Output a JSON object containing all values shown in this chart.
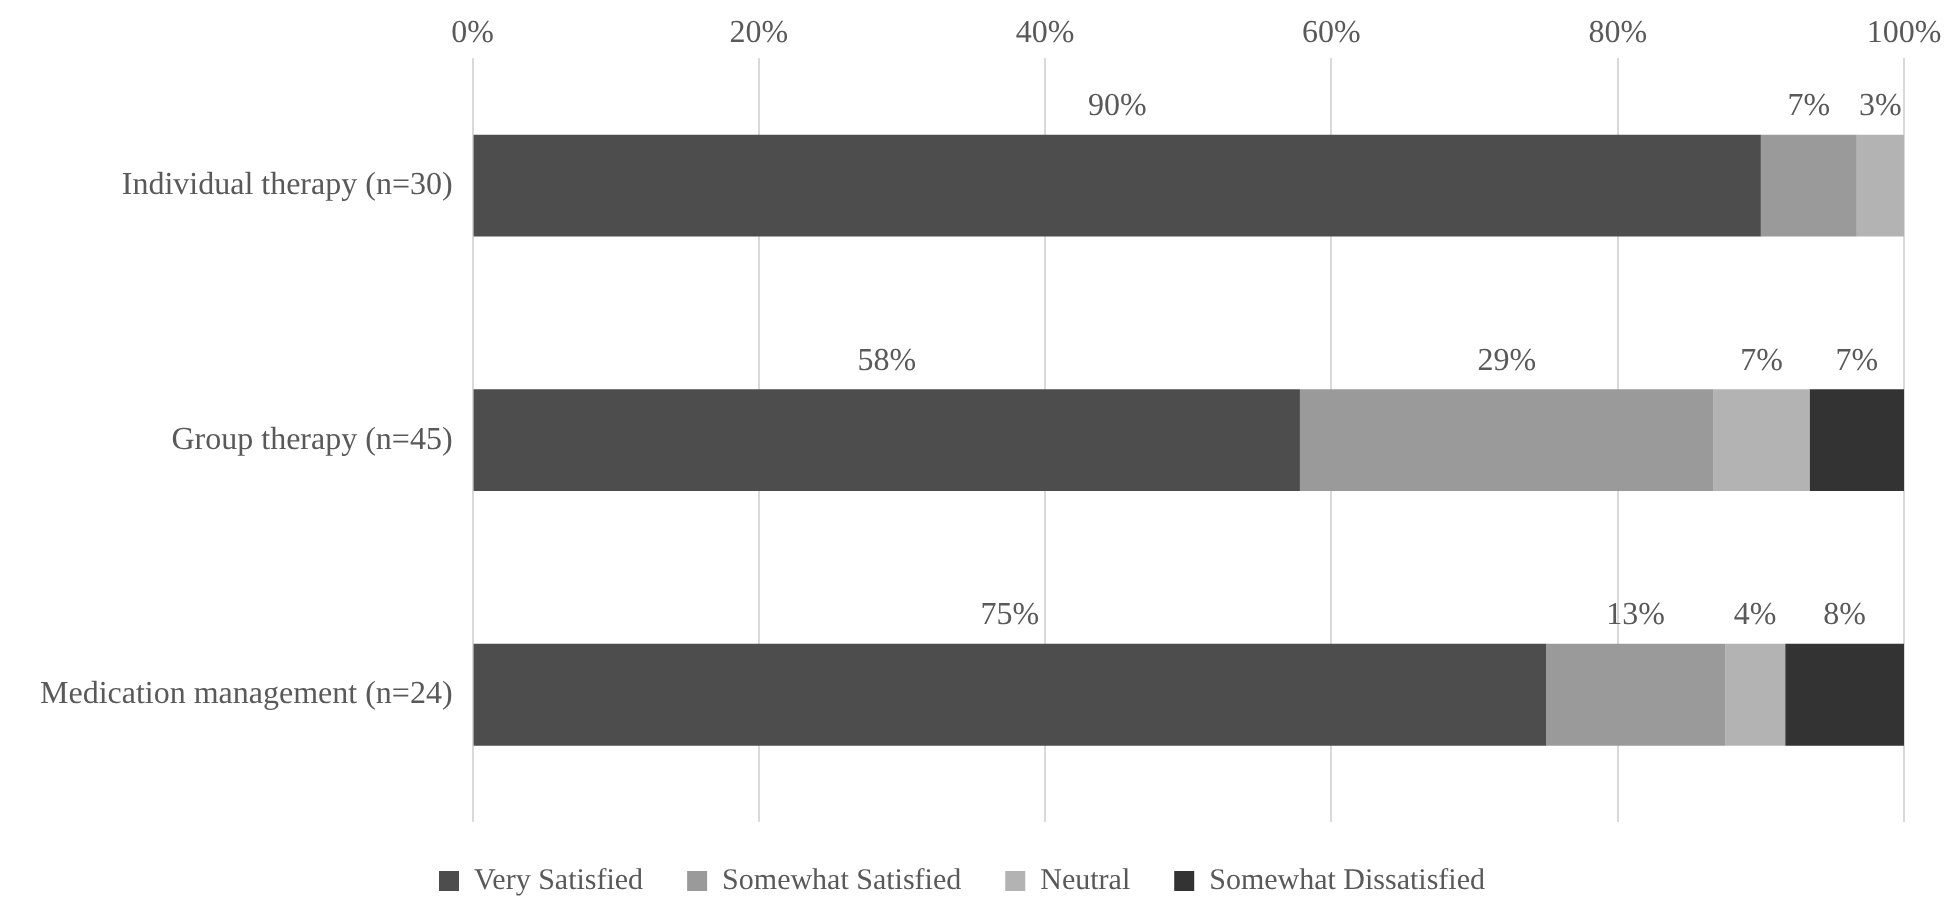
{
  "chart_data": {
    "type": "bar",
    "orientation": "horizontal",
    "stacked": true,
    "categories": [
      "Individual therapy (n=30)",
      "Group therapy (n=45)",
      "Medication management (n=24)"
    ],
    "series": [
      {
        "name": "Very Satisfied",
        "color": "#4d4d4d",
        "values": [
          90,
          57.8,
          75
        ],
        "value_labels": [
          "90%",
          "58%",
          "75%"
        ]
      },
      {
        "name": "Somewhat Satisfied",
        "color": "#9a9a9a",
        "values": [
          6.7,
          28.9,
          12.5
        ],
        "value_labels": [
          "7%",
          "29%",
          "13%"
        ]
      },
      {
        "name": "Neutral",
        "color": "#b3b3b3",
        "values": [
          3.3,
          6.7,
          4.2
        ],
        "value_labels": [
          "3%",
          "7%",
          "4%"
        ]
      },
      {
        "name": "Somewhat Dissatisfied",
        "color": "#333333",
        "values": [
          0,
          6.6,
          8.3
        ],
        "value_labels": [
          null,
          "7%",
          "8%"
        ]
      }
    ],
    "xlim": [
      0,
      100
    ],
    "xticks": [
      {
        "value": 0,
        "label": "0%"
      },
      {
        "value": 20,
        "label": "20%"
      },
      {
        "value": 40,
        "label": "40%"
      },
      {
        "value": 60,
        "label": "60%"
      },
      {
        "value": 80,
        "label": "80%"
      },
      {
        "value": 100,
        "label": "100%"
      }
    ],
    "grid": "x",
    "legend": "bottom"
  }
}
